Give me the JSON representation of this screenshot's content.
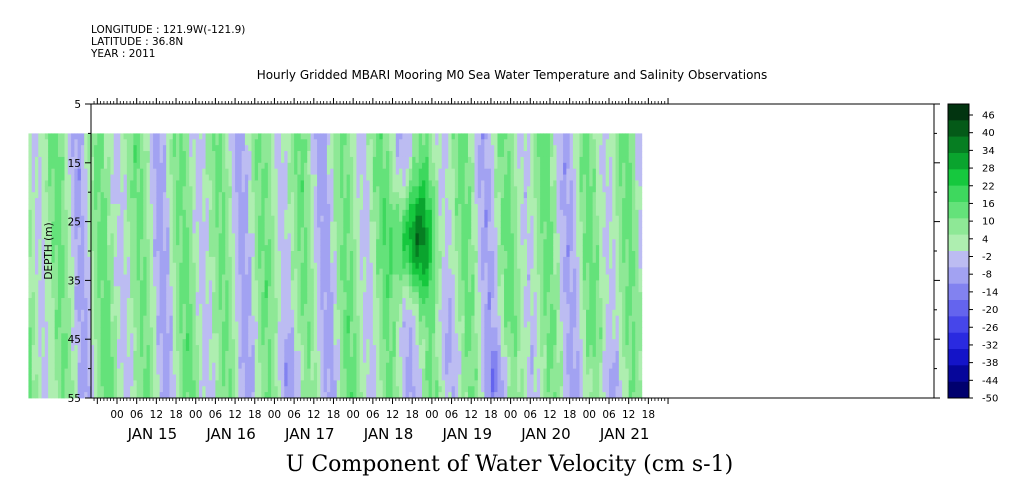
{
  "header": {
    "longitude": "LONGITUDE : 121.9W(-121.9)",
    "latitude": "LATITUDE : 36.8N",
    "year": "YEAR : 2011"
  },
  "chart_data": {
    "type": "heatmap",
    "title": "Hourly Gridded MBARI Mooring M0 Sea Water Temperature and Salinity Observations",
    "xlabel": "U Component of Water Velocity (cm s-1)",
    "ylabel": "DEPTH (m)",
    "ylim": [
      55,
      5
    ],
    "y_ticks": [
      "5",
      "15",
      "25",
      "35",
      "45",
      "55"
    ],
    "hour_ticks": [
      "00",
      "06",
      "12",
      "18",
      "00",
      "06",
      "12",
      "18",
      "00",
      "06",
      "12",
      "18",
      "00",
      "06",
      "12",
      "18",
      "00",
      "06",
      "12",
      "18",
      "00",
      "06",
      "12",
      "18",
      "00",
      "06",
      "12",
      "18"
    ],
    "day_labels": [
      "JAN 15",
      "JAN 16",
      "JAN 17",
      "JAN 18",
      "JAN 19",
      "JAN 20",
      "JAN 21"
    ],
    "colorbar": {
      "levels": [
        "46",
        "40",
        "34",
        "28",
        "22",
        "16",
        "10",
        "4",
        "-2",
        "-8",
        "-14",
        "-20",
        "-26",
        "-32",
        "-38",
        "-44",
        "-50"
      ],
      "range": [
        -50,
        50
      ],
      "colors_low_to_high": [
        "#00006e",
        "#06069a",
        "#1414c8",
        "#2a2ae0",
        "#4646ea",
        "#6464ee",
        "#8282f0",
        "#a2a2f2",
        "#bcbcf2",
        "#aeeeb0",
        "#8ee896",
        "#64e27a",
        "#3ed85e",
        "#16c83e",
        "#0aa42e",
        "#067e22",
        "#045a18",
        "#023410"
      ]
    },
    "grid": false,
    "note_data_start_depth": 10,
    "data_summary": "U velocity vs time (Jan 14 – Jan 21, 2011) and depth (10–55 m); alternating positive (green) and negative (blue/lavender) bands roughly every 12 hours, peak positive near Jan 18 18:00 at ~28 m"
  }
}
